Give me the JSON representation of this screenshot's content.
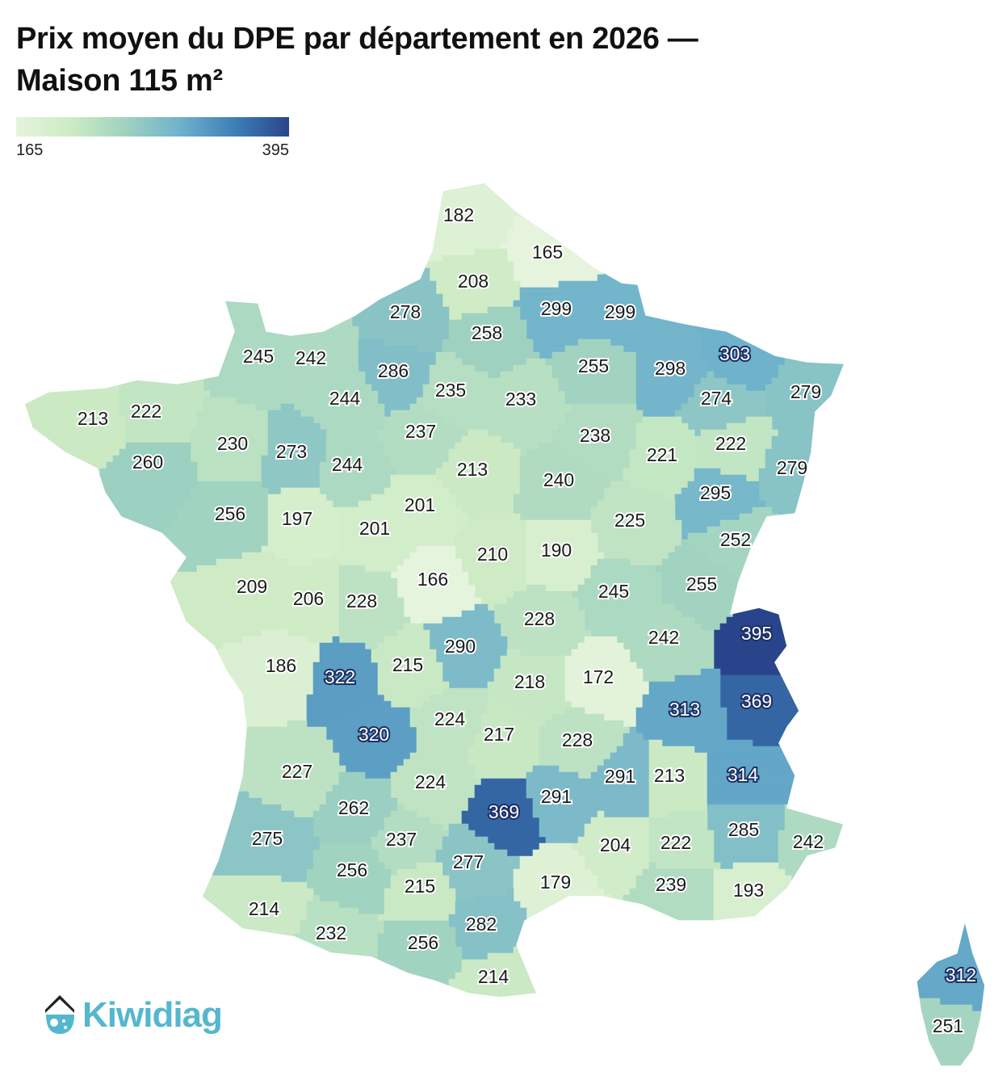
{
  "title": "Prix moyen du DPE par département en 2026 —",
  "title_line2": "Maison 115 m²",
  "legend": {
    "min": "165",
    "max": "395"
  },
  "brand": "Kiwidiag",
  "colors": {
    "low": "#e6f4dd",
    "high": "#28458b",
    "brand": "#55b7cf"
  },
  "chart_data": {
    "type": "choropleth",
    "value_range": [
      165,
      395
    ],
    "departments": [
      {
        "v": 182
      },
      {
        "v": 165
      },
      {
        "v": 208
      },
      {
        "v": 278
      },
      {
        "v": 299
      },
      {
        "v": 299
      },
      {
        "v": 258
      },
      {
        "v": 245
      },
      {
        "v": 242
      },
      {
        "v": 286
      },
      {
        "v": 303
      },
      {
        "v": 235
      },
      {
        "v": 233
      },
      {
        "v": 255
      },
      {
        "v": 298
      },
      {
        "v": 274
      },
      {
        "v": 279
      },
      {
        "v": 213
      },
      {
        "v": 222
      },
      {
        "v": 244
      },
      {
        "v": 230
      },
      {
        "v": 237
      },
      {
        "v": 238
      },
      {
        "v": 260
      },
      {
        "v": 273
      },
      {
        "v": 244
      },
      {
        "v": 213
      },
      {
        "v": 221
      },
      {
        "v": 222
      },
      {
        "v": 279
      },
      {
        "v": 240
      },
      {
        "v": 256
      },
      {
        "v": 197
      },
      {
        "v": 201
      },
      {
        "v": 201
      },
      {
        "v": 295
      },
      {
        "v": 225
      },
      {
        "v": 252
      },
      {
        "v": 210
      },
      {
        "v": 190
      },
      {
        "v": 166
      },
      {
        "v": 209
      },
      {
        "v": 206
      },
      {
        "v": 228
      },
      {
        "v": 245
      },
      {
        "v": 255
      },
      {
        "v": 228
      },
      {
        "v": 395
      },
      {
        "v": 242
      },
      {
        "v": 290
      },
      {
        "v": 186
      },
      {
        "v": 322
      },
      {
        "v": 215
      },
      {
        "v": 218
      },
      {
        "v": 172
      },
      {
        "v": 369
      },
      {
        "v": 313
      },
      {
        "v": 320
      },
      {
        "v": 224
      },
      {
        "v": 217
      },
      {
        "v": 228
      },
      {
        "v": 227
      },
      {
        "v": 291
      },
      {
        "v": 213
      },
      {
        "v": 314
      },
      {
        "v": 224
      },
      {
        "v": 369
      },
      {
        "v": 291
      },
      {
        "v": 262
      },
      {
        "v": 285
      },
      {
        "v": 242
      },
      {
        "v": 275
      },
      {
        "v": 237
      },
      {
        "v": 204
      },
      {
        "v": 222
      },
      {
        "v": 277
      },
      {
        "v": 256
      },
      {
        "v": 179
      },
      {
        "v": 239
      },
      {
        "v": 193
      },
      {
        "v": 215
      },
      {
        "v": 214
      },
      {
        "v": 232
      },
      {
        "v": 282
      },
      {
        "v": 256
      },
      {
        "v": 214
      },
      {
        "v": 312
      },
      {
        "v": 251
      }
    ]
  }
}
